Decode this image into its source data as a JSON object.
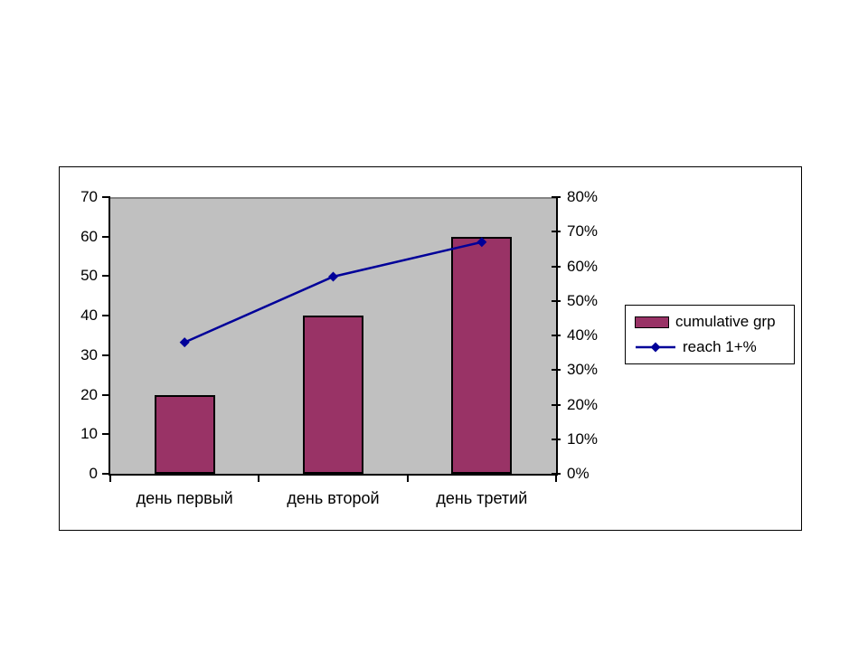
{
  "chart_data": {
    "type": "combo-bar-line",
    "title": "",
    "categories": [
      "день первый",
      "день второй",
      "день третий"
    ],
    "series": [
      {
        "name": "cumulative grp",
        "type": "bar",
        "axis": "left",
        "values": [
          20,
          40,
          60
        ],
        "color": "#993366"
      },
      {
        "name": "reach 1+%",
        "type": "line",
        "axis": "right",
        "values": [
          38,
          57,
          67
        ],
        "color": "#000099"
      }
    ],
    "left_axis": {
      "min": 0,
      "max": 70,
      "step": 10,
      "tick_labels": [
        "0",
        "10",
        "20",
        "30",
        "40",
        "50",
        "60",
        "70"
      ]
    },
    "right_axis": {
      "min": 0,
      "max": 80,
      "step": 10,
      "tick_labels": [
        "0%",
        "10%",
        "20%",
        "30%",
        "40%",
        "50%",
        "60%",
        "70%",
        "80%"
      ]
    },
    "legend_entries": [
      "cumulative grp",
      "reach 1+%"
    ],
    "legend_position": "right",
    "grid": false,
    "plot_background": "#C0C0C0",
    "marker_shape": "diamond"
  }
}
